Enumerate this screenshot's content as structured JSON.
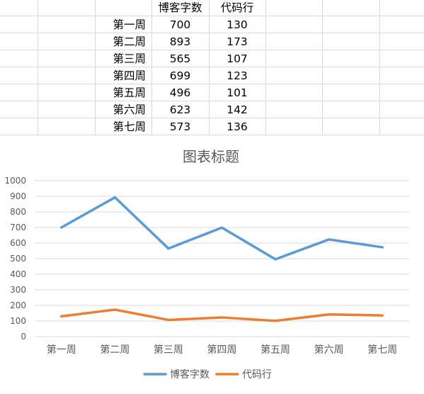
{
  "table": {
    "headers": [
      "博客字数",
      "代码行"
    ],
    "rows": [
      {
        "label": "第一周",
        "values": [
          "700",
          "130"
        ]
      },
      {
        "label": "第二周",
        "values": [
          "893",
          "173"
        ]
      },
      {
        "label": "第三周",
        "values": [
          "565",
          "107"
        ]
      },
      {
        "label": "第四周",
        "values": [
          "699",
          "123"
        ]
      },
      {
        "label": "第五周",
        "values": [
          "496",
          "101"
        ]
      },
      {
        "label": "第六周",
        "values": [
          "623",
          "142"
        ]
      },
      {
        "label": "第七周",
        "values": [
          "573",
          "136"
        ]
      }
    ]
  },
  "chart_data": {
    "type": "line",
    "title": "图表标题",
    "categories": [
      "第一周",
      "第二周",
      "第三周",
      "第四周",
      "第五周",
      "第六周",
      "第七周"
    ],
    "series": [
      {
        "name": "博客字数",
        "values": [
          700,
          893,
          565,
          699,
          496,
          623,
          573
        ],
        "color": "#5b9bd5"
      },
      {
        "name": "代码行",
        "values": [
          130,
          173,
          107,
          123,
          101,
          142,
          136
        ],
        "color": "#ed7d31"
      }
    ],
    "ylim": [
      0,
      1000
    ],
    "yticks": [
      0,
      100,
      200,
      300,
      400,
      500,
      600,
      700,
      800,
      900,
      1000
    ],
    "grid": true,
    "legend": "bottom",
    "xlabel": "",
    "ylabel": ""
  }
}
